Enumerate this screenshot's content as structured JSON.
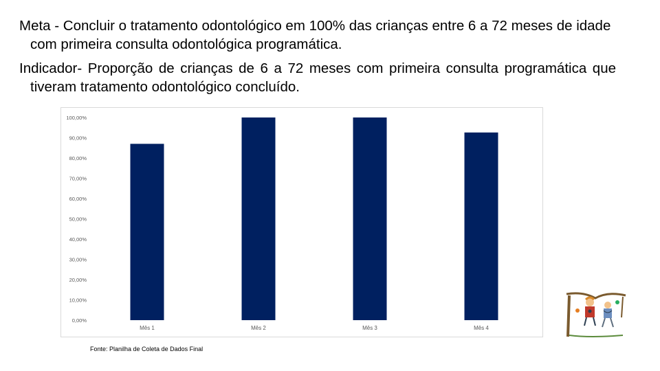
{
  "meta_text": "Meta -  Concluir o tratamento odontológico em 100% das crianças entre 6 a 72 meses de idade com primeira consulta odontológica programática.",
  "indicador_text": "Indicador- Proporção de crianças de 6 a 72 meses com primeira consulta programática que tiveram tratamento odontológico concluído.",
  "source_text": "Fonte: Planilha de Coleta de Dados Final",
  "chart_data": {
    "type": "bar",
    "categories": [
      "Mês 1",
      "Mês 2",
      "Mês 3",
      "Mês 4"
    ],
    "series": [
      {
        "values": [
          87.0,
          100.0,
          100.0,
          92.6
        ]
      }
    ],
    "y_tick_labels": [
      "0,00%",
      "10,00%",
      "20,00%",
      "30,00%",
      "40,00%",
      "50,00%",
      "60,00%",
      "70,00%",
      "80,00%",
      "90,00%",
      "100,00%"
    ],
    "ylim": [
      0,
      100
    ],
    "grid": false,
    "bar_color": "#002060",
    "title": "",
    "xlabel": "",
    "ylabel": ""
  }
}
